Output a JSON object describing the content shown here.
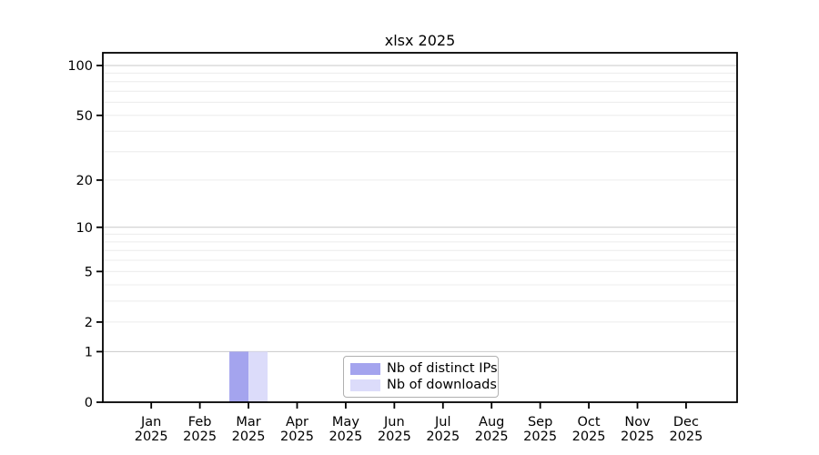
{
  "chart_data": {
    "type": "bar",
    "title": "xlsx 2025",
    "categories": [
      "Jan",
      "Feb",
      "Mar",
      "Apr",
      "May",
      "Jun",
      "Jul",
      "Aug",
      "Sep",
      "Oct",
      "Nov",
      "Dec"
    ],
    "category_year": "2025",
    "series": [
      {
        "name": "Nb of distinct IPs",
        "color": "#a4a4ee",
        "values": [
          0,
          0,
          1,
          0,
          0,
          0,
          0,
          0,
          0,
          0,
          0,
          0
        ]
      },
      {
        "name": "Nb of downloads",
        "color": "#dcdcfa",
        "values": [
          0,
          0,
          1,
          0,
          0,
          0,
          0,
          0,
          0,
          0,
          0,
          0
        ]
      }
    ],
    "yaxis": {
      "scale": "log1p",
      "ticks": [
        0,
        1,
        2,
        5,
        10,
        20,
        50,
        100
      ],
      "minor_gridlines": [
        2,
        3,
        4,
        5,
        6,
        7,
        8,
        9,
        20,
        30,
        40,
        50,
        60,
        70,
        80,
        90
      ],
      "major_gridlines": [
        1,
        10,
        100
      ],
      "ylim": [
        0,
        119
      ]
    },
    "xlabel": "",
    "ylabel": "",
    "legend": {
      "position": "lower center"
    },
    "grid": true,
    "colors": {
      "axis": "#000000",
      "minor_grid": "#ececec",
      "major_grid": "#c9c9c9",
      "legend_border": "#b0b0b0",
      "background": "#ffffff"
    }
  }
}
